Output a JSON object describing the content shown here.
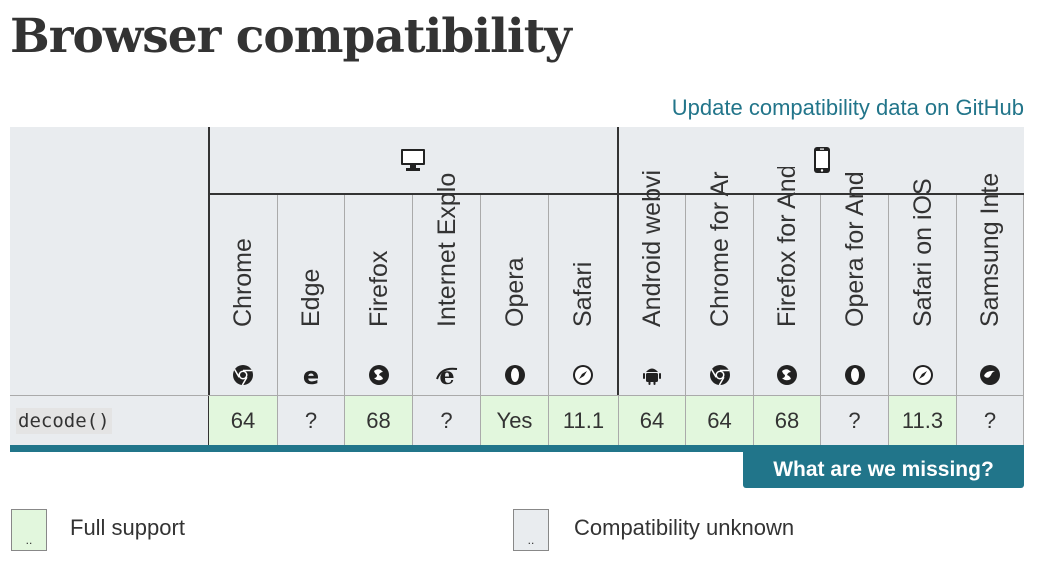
{
  "page": {
    "title": "Browser compatibility",
    "github_link": "Update compatibility data on GitHub",
    "missing_button": "What are we missing?"
  },
  "table": {
    "groups": [
      {
        "name": "desktop",
        "icon": "desktop-icon"
      },
      {
        "name": "mobile",
        "icon": "mobile-icon"
      }
    ],
    "browsers": [
      {
        "label": "Chrome",
        "icon": "chrome-icon"
      },
      {
        "label": "Edge",
        "icon": "edge-icon"
      },
      {
        "label": "Firefox",
        "icon": "firefox-icon"
      },
      {
        "label": "Internet Explo",
        "icon": "ie-icon"
      },
      {
        "label": "Opera",
        "icon": "opera-icon"
      },
      {
        "label": "Safari",
        "icon": "safari-icon"
      },
      {
        "label": "Android webvi",
        "icon": "android-icon"
      },
      {
        "label": "Chrome for Ar",
        "icon": "chrome-icon"
      },
      {
        "label": "Firefox for And",
        "icon": "firefox-icon"
      },
      {
        "label": "Opera for And",
        "icon": "opera-icon"
      },
      {
        "label": "Safari on iOS",
        "icon": "safari-icon"
      },
      {
        "label": "Samsung Inte",
        "icon": "samsung-icon"
      }
    ],
    "rows": [
      {
        "feature": "decode()",
        "cells": [
          {
            "value": "64",
            "support": "full"
          },
          {
            "value": "?",
            "support": "unknown"
          },
          {
            "value": "68",
            "support": "full"
          },
          {
            "value": "?",
            "support": "unknown"
          },
          {
            "value": "Yes",
            "support": "full"
          },
          {
            "value": "11.1",
            "support": "full"
          },
          {
            "value": "64",
            "support": "full"
          },
          {
            "value": "64",
            "support": "full"
          },
          {
            "value": "68",
            "support": "full"
          },
          {
            "value": "?",
            "support": "unknown"
          },
          {
            "value": "11.3",
            "support": "full"
          },
          {
            "value": "?",
            "support": "unknown"
          }
        ]
      }
    ]
  },
  "legend": [
    {
      "label": "Full support",
      "marker": "..",
      "type": "full"
    },
    {
      "label": "Compatibility unknown",
      "marker": "..",
      "type": "unknown"
    }
  ],
  "colors": {
    "full_support": "#e2f7dd",
    "unknown": "#e9ecef",
    "accent": "#21758a",
    "link": "#22758a"
  }
}
